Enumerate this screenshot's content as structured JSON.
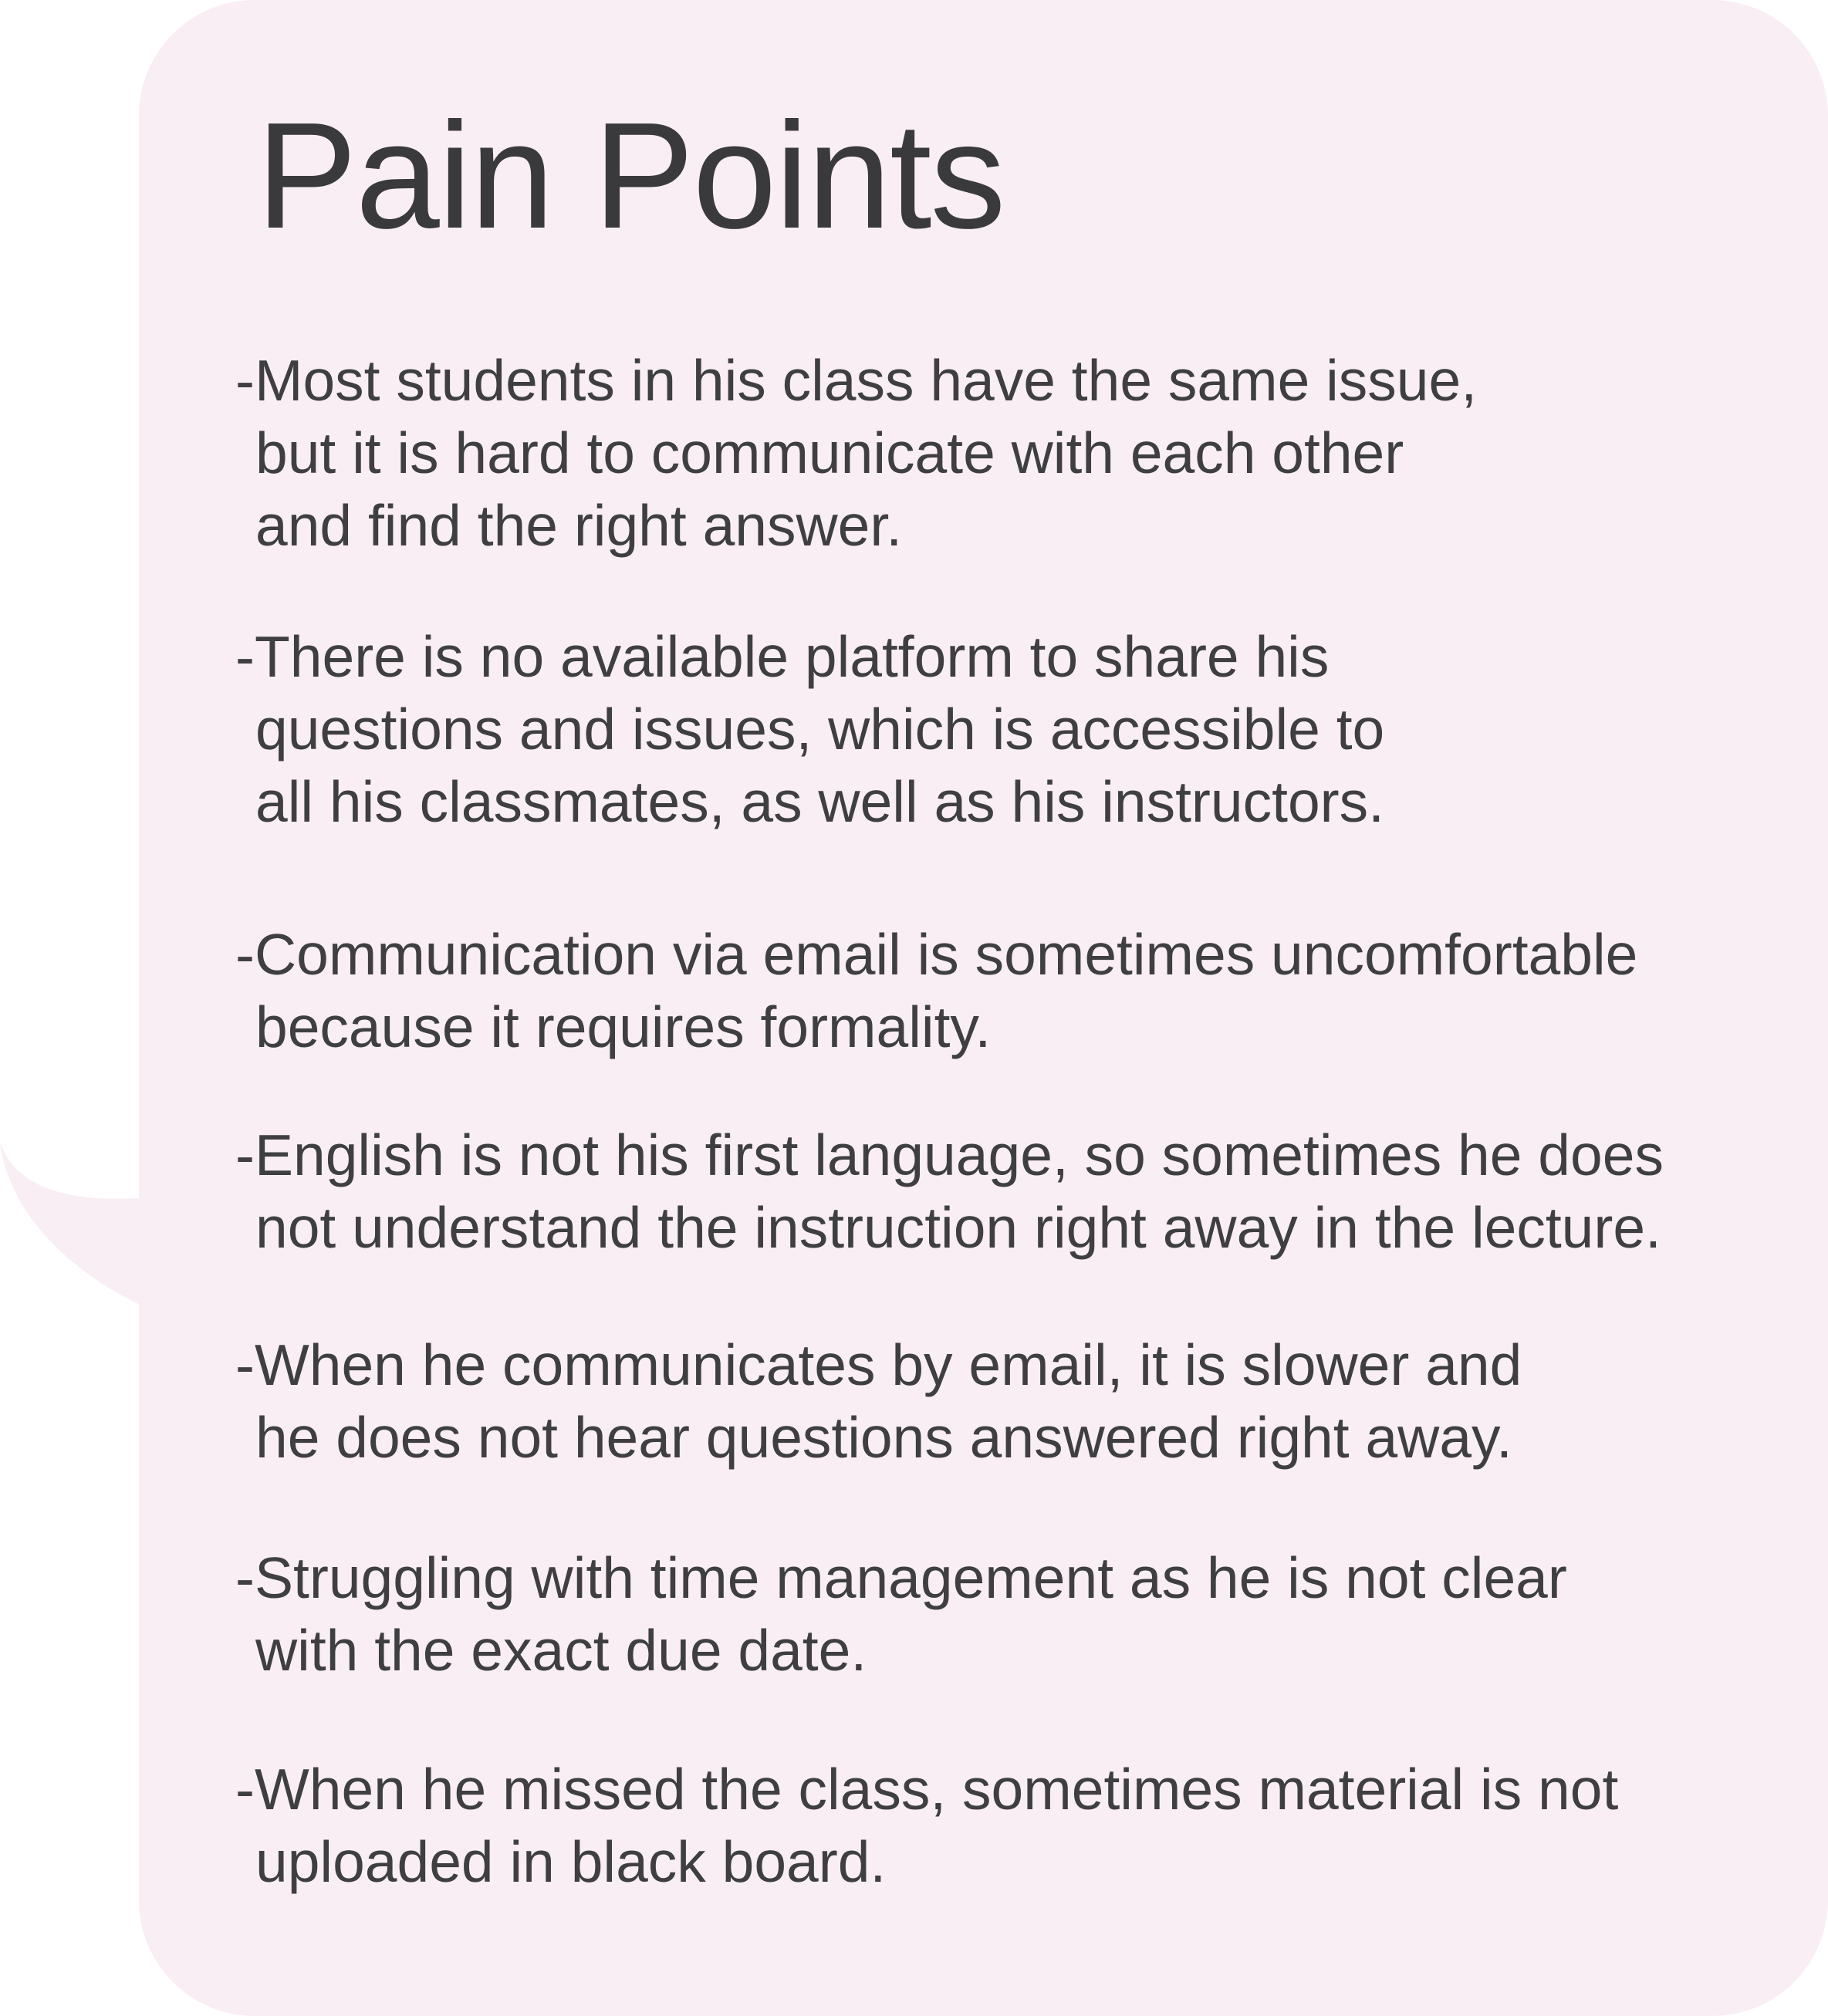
{
  "title": "Pain Points",
  "points": [
    {
      "lines": [
        "-Most students in his class have the same issue,",
        "but it is hard to communicate with each other",
        "and find the right answer."
      ]
    },
    {
      "lines": [
        "-There is no available platform to share his",
        "questions and issues, which is accessible to",
        "all his classmates, as well as his instructors."
      ]
    },
    {
      "lines": [
        "-Communication via email is sometimes uncomfortable",
        "because it requires formality."
      ]
    },
    {
      "lines": [
        "-English is not his first language, so sometimes he does",
        "not understand the instruction right away in the lecture."
      ]
    },
    {
      "lines": [
        "-When he communicates by email, it is slower and",
        "he does not hear questions answered right away."
      ]
    },
    {
      "lines": [
        "-Struggling with time management as he is not clear",
        "with the exact due date."
      ]
    },
    {
      "lines": [
        "-When he missed the class, sometimes material is not",
        "uploaded in black board."
      ]
    }
  ],
  "colors": {
    "bubble_bg": "#f9eef4",
    "title_text": "#3a3a3c",
    "body_text": "#3f3f41"
  }
}
